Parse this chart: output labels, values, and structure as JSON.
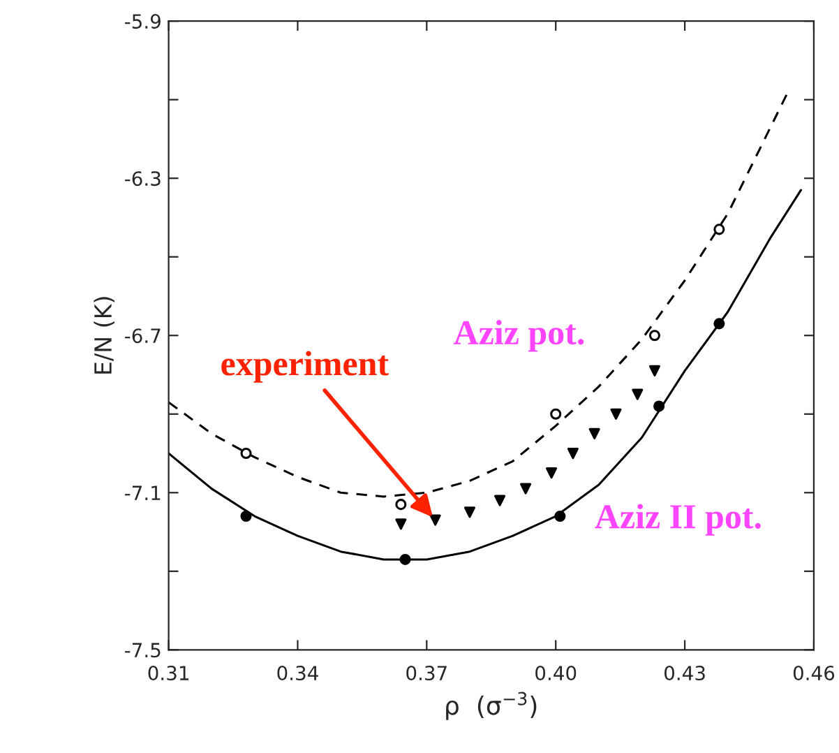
{
  "chart_data": {
    "type": "line",
    "xlabel": "ρ  (σ$^{−3}$)",
    "ylabel": "E/N (K)",
    "xlim": [
      0.31,
      0.46
    ],
    "ylim": [
      -7.5,
      -5.9
    ],
    "xticks": [
      0.31,
      0.34,
      0.37,
      {
        "value": 0.4,
        "label": "0.40"
      },
      0.43,
      0.46
    ],
    "yticks": [
      -7.5,
      {
        "value": -7.3,
        "label": null
      },
      -7.1,
      {
        "value": -6.9,
        "label": null
      },
      -6.7,
      {
        "value": -6.5,
        "label": null
      },
      -6.3,
      {
        "value": -6.1,
        "label": null
      },
      -5.9
    ],
    "grid": false,
    "legend": false,
    "series": [
      {
        "name": "Aziz pot.",
        "line_style": "dashed",
        "marker": "none",
        "color": "#000000",
        "x": [
          0.31,
          0.32,
          0.33,
          0.34,
          0.35,
          0.36,
          0.37,
          0.38,
          0.39,
          0.4,
          0.41,
          0.42,
          0.43,
          0.44,
          0.454
        ],
        "values": [
          -6.87,
          -6.95,
          -7.01,
          -7.06,
          -7.1,
          -7.11,
          -7.1,
          -7.07,
          -7.02,
          -6.93,
          -6.83,
          -6.71,
          -6.56,
          -6.39,
          -6.08
        ]
      },
      {
        "type": "scatter",
        "marker": "circle",
        "color": "#000000",
        "x": [
          0.328,
          0.364,
          0.4,
          0.423,
          0.438
        ],
        "values": [
          -7.0,
          -7.13,
          -6.9,
          -6.7,
          -6.43
        ]
      },
      {
        "name": "Aziz II pot.",
        "line_style": "solid",
        "marker": "none",
        "color": "#000000",
        "x": [
          0.31,
          0.32,
          0.33,
          0.34,
          0.35,
          0.36,
          0.37,
          0.38,
          0.39,
          0.4,
          0.41,
          0.42,
          0.43,
          0.44,
          0.45,
          0.457
        ],
        "values": [
          -7.0,
          -7.09,
          -7.16,
          -7.21,
          -7.25,
          -7.27,
          -7.27,
          -7.25,
          -7.21,
          -7.16,
          -7.08,
          -6.96,
          -6.79,
          -6.64,
          -6.45,
          -6.33
        ]
      },
      {
        "type": "scatter",
        "marker": "circle",
        "color": "#000000",
        "x": [
          0.328,
          0.365,
          0.401,
          0.424,
          0.438
        ],
        "values": [
          -7.16,
          -7.27,
          -7.16,
          -6.88,
          -6.67
        ]
      },
      {
        "type": "scatter",
        "marker": "triangle",
        "color": "#000000",
        "x": [
          0.364,
          0.372,
          0.38,
          0.387,
          0.393,
          0.399,
          0.404,
          0.409,
          0.414,
          0.419,
          0.423
        ],
        "values": [
          -7.18,
          -7.17,
          -7.15,
          -7.12,
          -7.09,
          -7.05,
          -7.0,
          -6.95,
          -6.9,
          -6.85,
          -6.79
        ]
      }
    ],
    "annotations": [
      {
        "text": "experiment",
        "x": 0.372,
        "y": -7.17
      }
    ]
  }
}
